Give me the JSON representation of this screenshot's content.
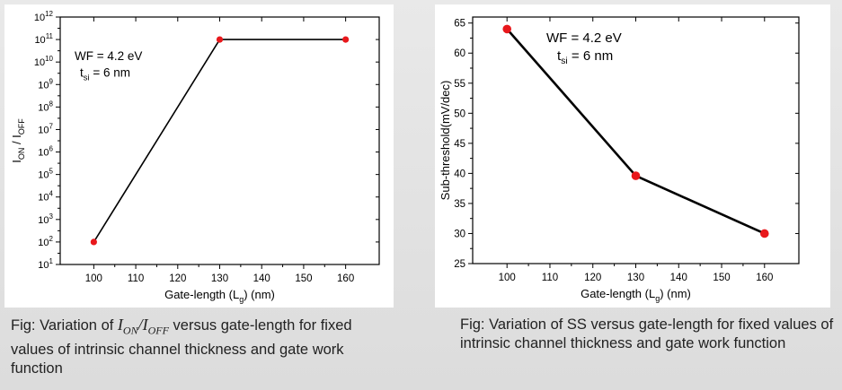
{
  "chart_data": [
    {
      "type": "line",
      "title": "",
      "x": [
        100,
        130,
        160
      ],
      "y": [
        100,
        100000000000,
        100000000000
      ],
      "xlabel": "Gate-length (L",
      "xlabel_sub": "g",
      "xlabel_tail": ") (nm)",
      "ylabel": "I",
      "ylabel_sub1": "ON",
      "ylabel_mid": " / I",
      "ylabel_sub2": "OFF",
      "xlim": [
        92,
        168
      ],
      "ylim_log10": [
        1,
        12
      ],
      "y_scale": "log",
      "x_ticks": [
        "100",
        "110",
        "120",
        "130",
        "140",
        "150",
        "160"
      ],
      "y_tick_exponents": [
        "1",
        "2",
        "3",
        "4",
        "5",
        "6",
        "7",
        "8",
        "9",
        "10",
        "11",
        "12"
      ],
      "y_tick_base": "10",
      "annotation_line1": "WF = 4.2 eV",
      "annotation_line2_pre": "t",
      "annotation_line2_sub": "si",
      "annotation_line2_post": " = 6 nm",
      "line_color": "#000000",
      "marker_color": "#e8181c",
      "grid": false
    },
    {
      "type": "line",
      "title": "",
      "x": [
        100,
        130,
        160
      ],
      "y": [
        64,
        39.6,
        30
      ],
      "xlabel": "Gate-length (L",
      "xlabel_sub": "g",
      "xlabel_tail": ") (nm)",
      "ylabel": "Sub-threshold(mV/dec)",
      "xlim": [
        92,
        168
      ],
      "ylim": [
        25,
        66
      ],
      "x_ticks": [
        "100",
        "110",
        "120",
        "130",
        "140",
        "150",
        "160"
      ],
      "y_ticks": [
        "25",
        "30",
        "35",
        "40",
        "45",
        "50",
        "55",
        "60",
        "65"
      ],
      "annotation_line1": "WF = 4.2 eV",
      "annotation_line2_pre": "t",
      "annotation_line2_sub": "si",
      "annotation_line2_post": " =  6 nm",
      "line_color": "#000000",
      "marker_color": "#e8181c",
      "grid": false
    }
  ],
  "captions": {
    "left_prefix": "Fig: Variation of ",
    "left_math_i1": "I",
    "left_math_sub1": "ON",
    "left_math_slash": "/",
    "left_math_i2": "I",
    "left_math_sub2": "OFF",
    "left_suffix": " versus gate-length for fixed values of intrinsic channel thickness and gate work function",
    "right": "Fig: Variation of SS versus gate-length for fixed values of intrinsic channel thickness and gate work function"
  }
}
